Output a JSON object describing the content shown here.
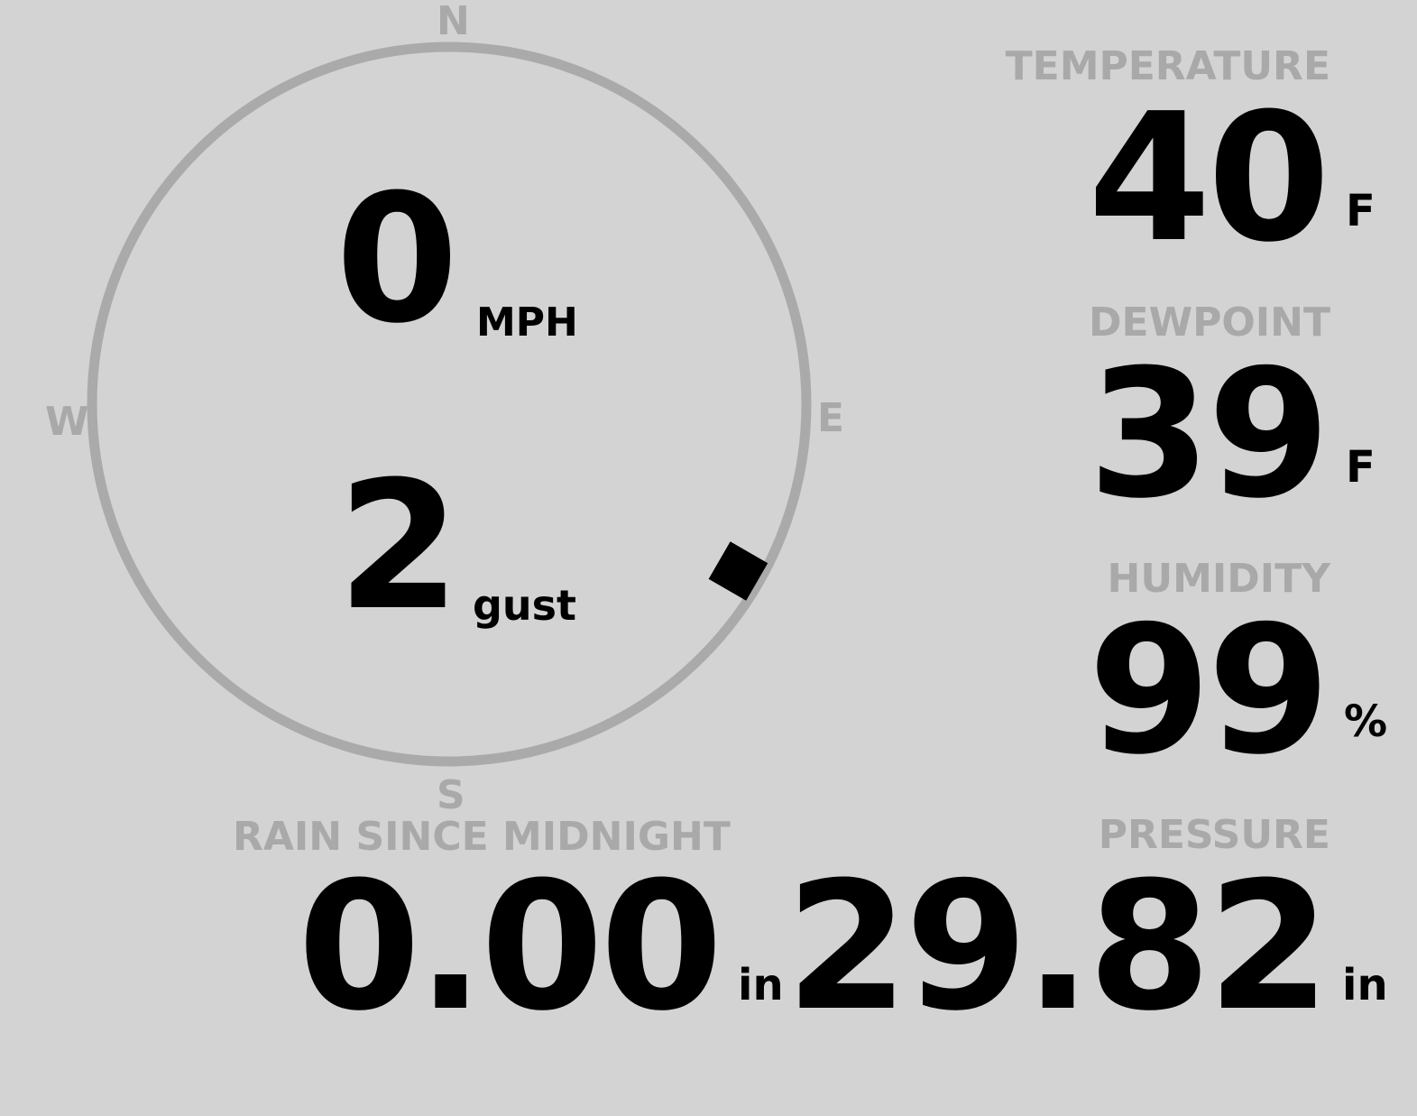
{
  "colors": {
    "background": "#d3d3d3",
    "label": "#a9a9a9",
    "value": "#000000",
    "dial": "#aaaaaa"
  },
  "wind": {
    "speed": "0",
    "speed_unit": "MPH",
    "gust": "2",
    "gust_label": "gust",
    "direction_deg": 120,
    "compass": {
      "n": "N",
      "e": "E",
      "s": "S",
      "w": "W"
    }
  },
  "temperature": {
    "label": "TEMPERATURE",
    "value": "40",
    "unit": "F"
  },
  "dewpoint": {
    "label": "DEWPOINT",
    "value": "39",
    "unit": "F"
  },
  "humidity": {
    "label": "HUMIDITY",
    "value": "99",
    "unit": "%"
  },
  "pressure": {
    "label": "PRESSURE",
    "value": "29.82",
    "unit": "in"
  },
  "rain": {
    "label": "RAIN SINCE MIDNIGHT",
    "value": "0.00",
    "unit": "in"
  }
}
